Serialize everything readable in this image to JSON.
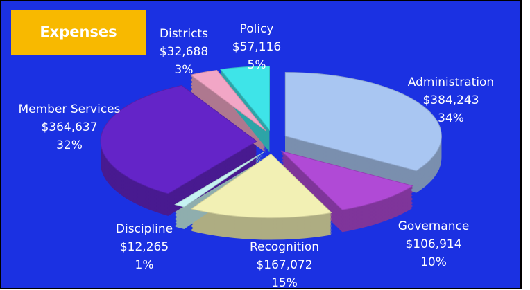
{
  "chart_data": {
    "type": "pie",
    "title": "Expenses",
    "categories": [
      "Administration",
      "Governance",
      "Recognition",
      "Discipline",
      "Member Services",
      "Districts",
      "Policy"
    ],
    "values": [
      384243,
      106914,
      167072,
      12265,
      364637,
      32688,
      57116
    ],
    "value_labels": [
      "$384,243",
      "$106,914",
      "$167,072",
      "$12,265",
      "$364,637",
      "$32,688",
      "$57,116"
    ],
    "percentages": [
      34,
      10,
      15,
      1,
      32,
      3,
      5
    ],
    "percentage_labels": [
      "34%",
      "10%",
      "15%",
      "1%",
      "32%",
      "3%",
      "5%"
    ],
    "colors": [
      "#a9c6f2",
      "#b04ad6",
      "#f2f0b4",
      "#c6f2f2",
      "#6424c8",
      "#f2a6c6",
      "#3ee4e8"
    ]
  }
}
